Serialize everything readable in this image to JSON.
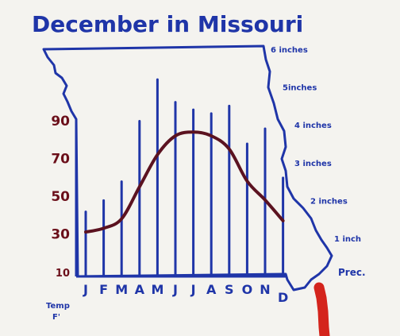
{
  "chart_data": {
    "type": "bar",
    "title": "December in Missouri",
    "categories": [
      "J",
      "F",
      "M",
      "A",
      "M",
      "J",
      "J",
      "A",
      "S",
      "O",
      "N",
      "D"
    ],
    "series": [
      {
        "kind": "bar",
        "axis": "right",
        "values": [
          1.7,
          2.0,
          2.5,
          4.1,
          5.2,
          4.6,
          4.4,
          4.3,
          4.5,
          3.5,
          3.9,
          2.6
        ],
        "color": "#1f35a8"
      },
      {
        "kind": "line",
        "axis": "left",
        "values": [
          31,
          33,
          38,
          55,
          72,
          82,
          84,
          82,
          75,
          58,
          48,
          37
        ],
        "color": "#5b1220"
      }
    ],
    "y_left": {
      "label": "Temp F'",
      "ticks": [
        "10",
        "30",
        "50",
        "70",
        "90"
      ],
      "tick_values": [
        10,
        30,
        50,
        70,
        90
      ],
      "range": [
        10,
        90
      ],
      "color": "#6b0f1a"
    },
    "y_right": {
      "label": "Prec.",
      "ticks": [
        "1 inch",
        "2 inches",
        "3 inches",
        "4 inches",
        "5inches",
        "6 inches"
      ],
      "tick_values": [
        1,
        2,
        3,
        4,
        5,
        6
      ],
      "range": [
        0,
        6
      ],
      "color": "#1f35a8"
    },
    "grid": false,
    "legend": "none"
  },
  "colors": {
    "ink_blue": "#1f35a8",
    "ink_red": "#6b0f1a",
    "marker_red": "#d4241c",
    "paper": "#f4f3ef"
  }
}
